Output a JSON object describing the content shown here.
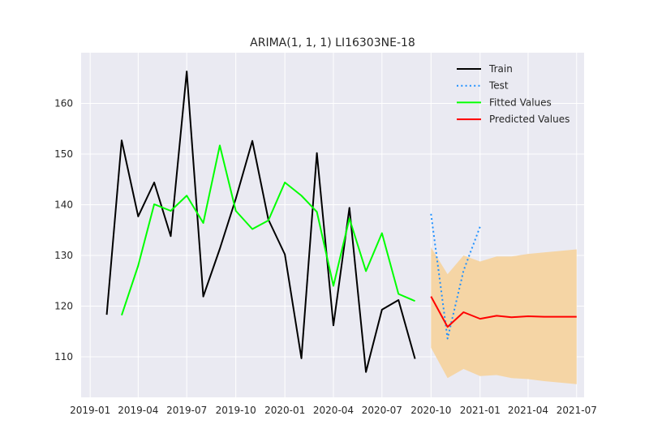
{
  "chart_data": {
    "type": "line",
    "title": "ARIMA(1, 1, 1) LI16303NE-18",
    "xlabel": "",
    "ylabel": "",
    "grid": true,
    "legend_position": "top-right",
    "xlim": [
      "2018-12-15",
      "2021-07-15"
    ],
    "ylim": [
      102,
      170
    ],
    "x_ticks": [
      "2019-01",
      "2019-04",
      "2019-07",
      "2019-10",
      "2020-01",
      "2020-04",
      "2020-07",
      "2020-10",
      "2021-01",
      "2021-04",
      "2021-07"
    ],
    "y_ticks": [
      110,
      120,
      130,
      140,
      150,
      160
    ],
    "series": [
      {
        "name": "Train",
        "color": "#000000",
        "style": "solid",
        "x": [
          "2019-02",
          "2019-03",
          "2019-04",
          "2019-05",
          "2019-06",
          "2019-07",
          "2019-08",
          "2019-09",
          "2019-10",
          "2019-11",
          "2019-12",
          "2020-01",
          "2020-02",
          "2020-03",
          "2020-04",
          "2020-05",
          "2020-06",
          "2020-07",
          "2020-08",
          "2020-09"
        ],
        "values": [
          118.3,
          152.7,
          137.7,
          144.4,
          133.8,
          166.3,
          121.9,
          131.3,
          141.2,
          152.6,
          137.1,
          130.2,
          109.7,
          150.2,
          116.2,
          139.4,
          107.0,
          119.3,
          121.2,
          109.6
        ]
      },
      {
        "name": "Test",
        "color": "#1e90ff",
        "style": "dotted",
        "x": [
          "2020-10",
          "2020-11",
          "2020-12",
          "2021-01"
        ],
        "values": [
          138.2,
          113.6,
          127.0,
          135.7
        ]
      },
      {
        "name": "Fitted Values",
        "color": "#00ff00",
        "style": "solid",
        "x": [
          "2019-03",
          "2019-04",
          "2019-05",
          "2019-06",
          "2019-07",
          "2019-08",
          "2019-09",
          "2019-10",
          "2019-11",
          "2019-12",
          "2020-01",
          "2020-02",
          "2020-03",
          "2020-04",
          "2020-05",
          "2020-06",
          "2020-07",
          "2020-08",
          "2020-09"
        ],
        "values": [
          118.2,
          128.0,
          140.1,
          138.8,
          141.8,
          136.4,
          151.7,
          138.8,
          135.2,
          136.9,
          144.4,
          141.8,
          138.6,
          124.0,
          137.3,
          126.9,
          134.4,
          122.4,
          121.0
        ]
      },
      {
        "name": "Predicted Values",
        "color": "#ff0000",
        "style": "solid",
        "x": [
          "2020-10",
          "2020-11",
          "2020-12",
          "2021-01",
          "2021-02",
          "2021-03",
          "2021-04",
          "2021-05",
          "2021-06",
          "2021-07"
        ],
        "values": [
          121.9,
          115.9,
          118.8,
          117.5,
          118.1,
          117.8,
          118.0,
          117.9,
          117.9,
          117.9
        ]
      }
    ],
    "confidence_band": {
      "color": "#f5d5a5",
      "x": [
        "2020-10",
        "2020-11",
        "2020-12",
        "2021-01",
        "2021-02",
        "2021-03",
        "2021-04",
        "2021-05",
        "2021-06",
        "2021-07"
      ],
      "lower": [
        111.8,
        105.8,
        107.6,
        106.2,
        106.4,
        105.8,
        105.6,
        105.2,
        104.9,
        104.6
      ],
      "upper": [
        131.6,
        126.3,
        130.0,
        128.8,
        129.8,
        129.8,
        130.3,
        130.6,
        130.9,
        131.2
      ]
    }
  }
}
